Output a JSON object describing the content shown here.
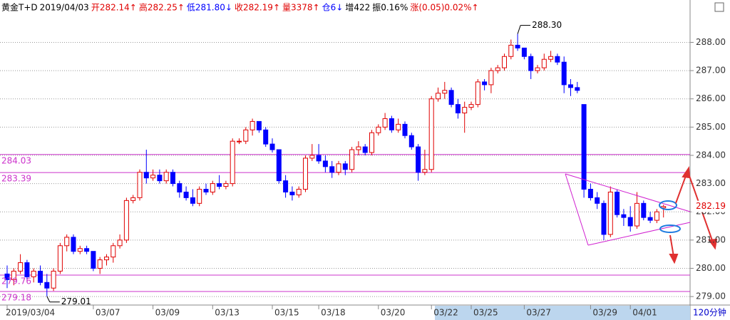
{
  "header": [
    {
      "text": "黄金T+D",
      "color": "#000000"
    },
    {
      "text": "2019/04/03",
      "color": "#000000"
    },
    {
      "text": "开282.14↑",
      "color": "#e00000"
    },
    {
      "text": "高282.25↑",
      "color": "#e00000"
    },
    {
      "text": "低281.80↓",
      "color": "#0000ff"
    },
    {
      "text": "收282.19↑",
      "color": "#e00000"
    },
    {
      "text": "量3378↑",
      "color": "#e00000"
    },
    {
      "text": "仓6↓",
      "color": "#0000ff"
    },
    {
      "text": "增422",
      "color": "#000000"
    },
    {
      "text": "振0.16%",
      "color": "#000000"
    },
    {
      "text": "涨(0.05)0.02%↑",
      "color": "#e00000"
    }
  ],
  "chart_data": {
    "type": "candlestick",
    "period": "120分钟",
    "up_color": "#e00000",
    "down_color": "#0000ff",
    "ylim": [
      278.7,
      289.5
    ],
    "yticks": [
      {
        "value": 279,
        "label": "279.00"
      },
      {
        "value": 280,
        "label": "280.00"
      },
      {
        "value": 281,
        "label": "281.00"
      },
      {
        "value": 282,
        "label": "282.00"
      },
      {
        "value": 283,
        "label": "283.00"
      },
      {
        "value": 284,
        "label": "284.00"
      },
      {
        "value": 285,
        "label": "285.00"
      },
      {
        "value": 286,
        "label": "286.00"
      },
      {
        "value": 287,
        "label": "287.00"
      },
      {
        "value": 288,
        "label": "288.00"
      }
    ],
    "xticks": [
      {
        "value": 0,
        "label": "2019/03/04"
      },
      {
        "value": 13,
        "label": "03/07"
      },
      {
        "value": 22,
        "label": "03/09"
      },
      {
        "value": 31,
        "label": "03/13"
      },
      {
        "value": 40,
        "label": "03/15"
      },
      {
        "value": 47,
        "label": "03/18"
      },
      {
        "value": 56,
        "label": "03/20"
      },
      {
        "value": 64,
        "label": "03/22"
      },
      {
        "value": 70,
        "label": "03/25"
      },
      {
        "value": 78,
        "label": "03/27"
      },
      {
        "value": 88,
        "label": "03/29"
      },
      {
        "value": 94,
        "label": "04/01"
      }
    ],
    "levels": [
      284.03,
      283.39,
      279.76,
      279.18
    ],
    "high_label": {
      "value": 288.3,
      "label": "288.30"
    },
    "low_label": 279.01,
    "last_price": 282.19,
    "open": [
      279.8,
      279.6,
      279.9,
      280.2,
      279.7,
      279.9,
      279.5,
      279.3,
      279.9,
      280.8,
      281.1,
      280.6,
      280.7,
      280.6,
      280.0,
      280.3,
      280.4,
      280.8,
      281.0,
      282.4,
      282.5,
      283.4,
      283.2,
      283.3,
      283.1,
      283.4,
      283.0,
      282.7,
      282.5,
      282.3,
      282.8,
      282.7,
      283.0,
      282.9,
      283.0,
      284.5,
      284.5,
      284.9,
      285.2,
      284.9,
      284.4,
      284.2,
      283.1,
      282.7,
      282.6,
      282.8,
      283.9,
      284.0,
      283.8,
      283.6,
      283.4,
      283.7,
      283.5,
      284.2,
      284.3,
      284.1,
      284.8,
      285.0,
      285.3,
      284.9,
      285.1,
      284.7,
      284.3,
      283.4,
      283.5,
      286.0,
      286.2,
      286.3,
      285.8,
      285.5,
      285.7,
      285.8,
      286.6,
      286.5,
      287.0,
      287.1,
      287.5,
      287.9,
      287.8,
      287.5,
      287.0,
      287.1,
      287.4,
      287.5,
      287.3,
      286.5,
      286.4,
      285.8,
      282.8,
      282.5,
      282.3,
      281.2,
      282.7,
      281.9,
      281.8,
      281.5,
      282.3,
      281.8,
      281.7,
      282.14
    ],
    "high": [
      280.1,
      280.0,
      280.5,
      280.3,
      280.0,
      280.1,
      279.8,
      280.0,
      280.9,
      281.2,
      281.2,
      280.8,
      280.8,
      280.6,
      280.4,
      280.5,
      280.9,
      281.2,
      282.5,
      282.6,
      283.5,
      284.2,
      283.5,
      283.5,
      283.5,
      283.5,
      283.1,
      282.9,
      282.8,
      282.9,
      283.0,
      283.1,
      283.3,
      283.1,
      284.6,
      284.6,
      285.0,
      285.3,
      285.2,
      285.0,
      284.6,
      284.2,
      283.3,
      282.9,
      282.9,
      284.0,
      284.4,
      284.4,
      284.0,
      283.8,
      283.8,
      283.8,
      284.3,
      284.5,
      284.4,
      284.9,
      285.1,
      285.5,
      285.4,
      285.3,
      285.2,
      284.8,
      284.4,
      284.2,
      286.1,
      286.4,
      286.6,
      286.4,
      286.0,
      285.9,
      285.9,
      286.7,
      286.7,
      287.1,
      287.2,
      287.6,
      288.1,
      288.3,
      287.8,
      287.6,
      287.2,
      287.6,
      287.7,
      287.6,
      287.5,
      286.7,
      286.6,
      285.8,
      283.0,
      282.7,
      282.4,
      282.9,
      282.8,
      282.1,
      282.2,
      282.7,
      282.4,
      282.0,
      282.1,
      282.25
    ],
    "low": [
      279.3,
      279.4,
      279.8,
      279.6,
      279.5,
      279.4,
      279.01,
      279.2,
      279.8,
      280.6,
      280.5,
      280.5,
      280.5,
      279.9,
      279.8,
      280.1,
      280.2,
      280.7,
      280.9,
      282.3,
      282.4,
      283.0,
      283.1,
      283.0,
      283.0,
      282.9,
      282.5,
      282.4,
      282.2,
      282.2,
      282.6,
      282.6,
      282.8,
      282.8,
      282.9,
      284.4,
      284.4,
      284.7,
      284.8,
      284.3,
      284.1,
      283.0,
      282.5,
      282.4,
      282.5,
      282.7,
      283.8,
      283.7,
      283.4,
      283.2,
      283.3,
      283.3,
      283.4,
      284.0,
      284.0,
      284.0,
      284.7,
      284.9,
      284.8,
      284.8,
      284.6,
      284.2,
      283.1,
      283.3,
      283.4,
      285.9,
      286.0,
      285.7,
      285.3,
      284.8,
      285.6,
      285.7,
      286.3,
      286.2,
      286.9,
      287.0,
      287.4,
      287.7,
      287.4,
      286.7,
      286.9,
      287.0,
      287.3,
      287.2,
      286.2,
      286.1,
      286.2,
      282.5,
      282.4,
      282.1,
      281.0,
      281.1,
      281.8,
      281.5,
      281.3,
      281.4,
      281.7,
      281.6,
      281.6,
      281.8
    ],
    "close": [
      279.6,
      279.9,
      280.2,
      279.7,
      279.9,
      279.5,
      279.3,
      279.9,
      280.8,
      281.1,
      280.6,
      280.7,
      280.6,
      280.0,
      280.3,
      280.4,
      280.8,
      281.0,
      282.4,
      282.5,
      283.4,
      283.2,
      283.3,
      283.1,
      283.4,
      283.0,
      282.7,
      282.5,
      282.3,
      282.8,
      282.7,
      283.0,
      282.9,
      283.0,
      284.5,
      284.5,
      284.9,
      285.2,
      284.9,
      284.4,
      284.2,
      283.1,
      282.7,
      282.6,
      282.8,
      283.9,
      284.0,
      283.8,
      283.6,
      283.4,
      283.7,
      283.5,
      284.2,
      284.3,
      284.1,
      284.8,
      285.0,
      285.3,
      284.9,
      285.1,
      284.7,
      284.3,
      283.4,
      283.5,
      286.0,
      286.2,
      286.3,
      285.8,
      285.5,
      285.7,
      285.8,
      286.6,
      286.5,
      287.0,
      287.1,
      287.5,
      287.9,
      287.8,
      287.5,
      287.0,
      287.1,
      287.4,
      287.5,
      287.3,
      286.5,
      286.4,
      286.3,
      282.8,
      282.5,
      282.3,
      281.2,
      282.7,
      281.9,
      281.8,
      281.5,
      282.3,
      281.8,
      281.7,
      282.0,
      282.19
    ]
  }
}
